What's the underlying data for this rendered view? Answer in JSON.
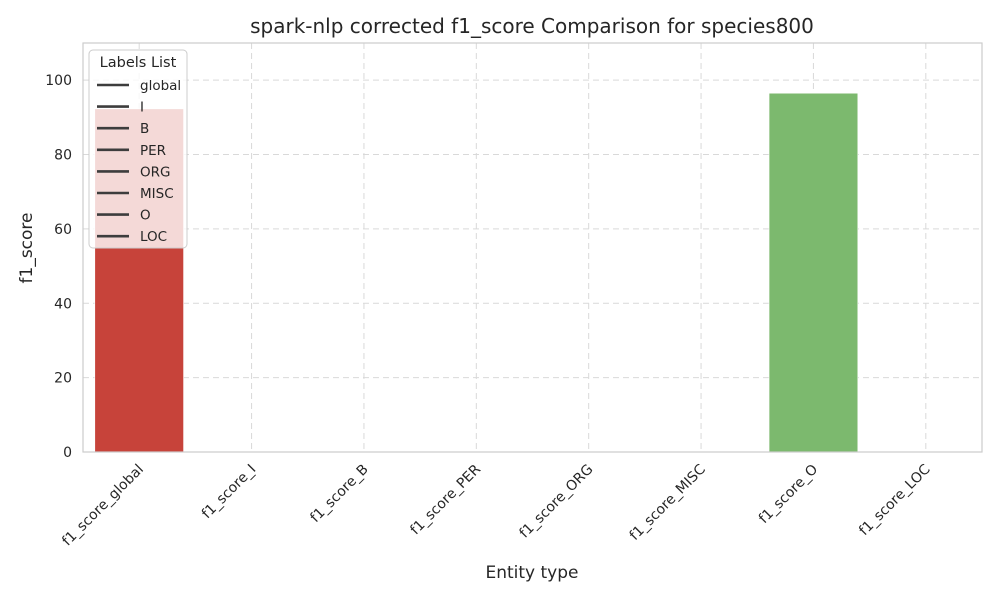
{
  "chart_data": {
    "type": "bar",
    "title": "spark-nlp corrected f1_score Comparison for species800",
    "xlabel": "Entity type",
    "ylabel": "f1_score",
    "categories": [
      "f1_score_global",
      "f1_score_I",
      "f1_score_B",
      "f1_score_PER",
      "f1_score_ORG",
      "f1_score_MISC",
      "f1_score_O",
      "f1_score_LOC"
    ],
    "values": [
      92.3,
      0,
      0,
      0,
      0,
      0,
      96.5,
      0
    ],
    "bar_colors": [
      "#c7433a",
      "#e06b5a",
      "#f0a07a",
      "#f5c89e",
      "#d9e6a6",
      "#a8d88a",
      "#7cb96e",
      "#4c9a4f"
    ],
    "ylim": [
      0,
      110
    ],
    "yticks": [
      0,
      20,
      40,
      60,
      80,
      100
    ],
    "grid": true,
    "legend": {
      "title": "Labels List",
      "placement": "top-left",
      "entries": [
        "global",
        "I",
        "B",
        "PER",
        "ORG",
        "MISC",
        "O",
        "LOC"
      ]
    }
  }
}
